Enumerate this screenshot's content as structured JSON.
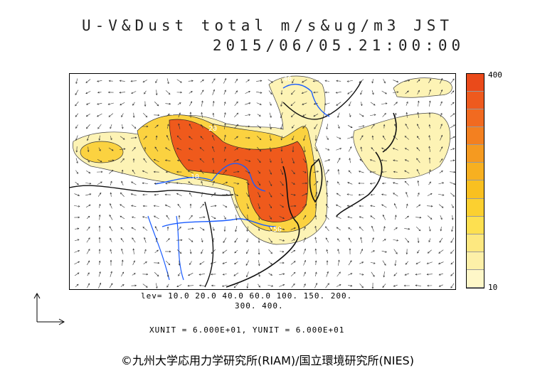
{
  "header": {
    "title_line1": "U-V&Dust total m/s&ug/m3 JST",
    "title_line2": "2015/06/05.21:00:00"
  },
  "colorbar": {
    "max_label": "400",
    "min_label": "10",
    "colors": [
      "#fef7c8",
      "#fdf0a8",
      "#fde880",
      "#fde050",
      "#fbd030",
      "#f9c020",
      "#f7b020",
      "#f59a20",
      "#f38020",
      "#f16a20",
      "#ee5a1e",
      "#ea4a1a"
    ]
  },
  "map": {
    "contour_labels": [
      "40",
      "20",
      "10",
      "40",
      "150"
    ],
    "colors": {
      "land_border": "#111111",
      "river": "#1a5cff",
      "low": "#fdf3b5",
      "mid": "#fbd240",
      "high": "#ef5a1c"
    }
  },
  "levels": {
    "line1": "lev= 10.0 20.0 40.0 60.0 100. 150. 200.",
    "line2": "300. 400."
  },
  "units": {
    "text": "XUNIT = 6.000E+01, YUNIT = 6.000E+01"
  },
  "credit": {
    "text": "©九州大学応用力学研究所(RIAM)/国立環境研究所(NIES)"
  }
}
